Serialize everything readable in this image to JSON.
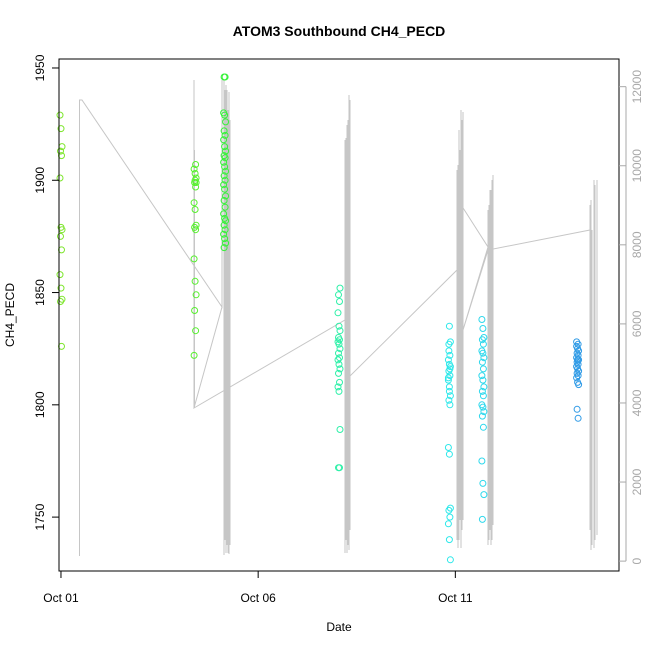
{
  "chart_data": {
    "type": "scatter",
    "title": "ATOM3 Southbound CH4_PECD",
    "xlabel": "Date",
    "ylabel": "CH4_PECD",
    "x_unit": "date (October, day of month)",
    "xlim": [
      0.95,
      15.15
    ],
    "ylim": [
      1726,
      1954
    ],
    "y2lim": [
      -250,
      12700
    ],
    "x_ticks": [
      {
        "value": 1,
        "label": "Oct 01"
      },
      {
        "value": 6,
        "label": "Oct 06"
      },
      {
        "value": 11,
        "label": "Oct 11"
      }
    ],
    "y_ticks": [
      1750,
      1800,
      1850,
      1900,
      1950
    ],
    "y2_ticks": [
      0,
      2000,
      4000,
      6000,
      8000,
      10000,
      12000
    ],
    "grid": false,
    "points_colored_by": "date (green to blue)",
    "series": [
      {
        "color": "#7ee62d",
        "x": [
          1.0,
          1.0,
          1.0,
          1.0,
          1.0,
          1.0,
          1.0,
          1.0,
          1.0,
          1.0,
          1.0,
          1.0,
          1.0,
          1.0,
          1.0
        ],
        "y": [
          1929,
          1923,
          1915,
          1913,
          1911,
          1901,
          1879,
          1878,
          1875,
          1869,
          1858,
          1852,
          1847,
          1846,
          1826
        ]
      },
      {
        "color": "#57f02e",
        "x": [
          4.4,
          4.4,
          4.4,
          4.4,
          4.4,
          4.4,
          4.4,
          4.4,
          4.4,
          4.4,
          4.4,
          4.4,
          4.4,
          4.4,
          4.4,
          4.4,
          4.4,
          4.4,
          4.4
        ],
        "y": [
          1907,
          1905,
          1903,
          1901,
          1899,
          1897,
          1890,
          1887,
          1880,
          1879,
          1878,
          1865,
          1855,
          1849,
          1842,
          1833,
          1822,
          1900,
          1899
        ]
      },
      {
        "color": "#35f238",
        "x": [
          5.15,
          5.15,
          5.15,
          5.15,
          5.15,
          5.15,
          5.15,
          5.15,
          5.15,
          5.15,
          5.15,
          5.15,
          5.15,
          5.15,
          5.15,
          5.15,
          5.15,
          5.15,
          5.15,
          5.15,
          5.15,
          5.15,
          5.15,
          5.15,
          5.15,
          5.15,
          5.15,
          5.15,
          5.15,
          5.15,
          5.15
        ],
        "y": [
          1946,
          1946,
          1930,
          1929,
          1926,
          1922,
          1920,
          1918,
          1915,
          1913,
          1911,
          1910,
          1908,
          1906,
          1904,
          1902,
          1900,
          1898,
          1896,
          1893,
          1891,
          1888,
          1885,
          1883,
          1882,
          1880,
          1878,
          1876,
          1874,
          1872,
          1870
        ]
      },
      {
        "color": "#2ef0a8",
        "x": [
          8.05,
          8.05,
          8.05,
          8.05,
          8.05,
          8.05,
          8.05,
          8.05,
          8.05,
          8.05,
          8.05,
          8.05,
          8.05,
          8.05,
          8.05,
          8.05,
          8.05,
          8.05,
          8.05,
          8.05,
          8.05,
          8.05,
          8.05
        ],
        "y": [
          1852,
          1849,
          1846,
          1841,
          1835,
          1833,
          1830,
          1829,
          1828,
          1827,
          1825,
          1823,
          1821,
          1820,
          1818,
          1816,
          1814,
          1810,
          1808,
          1806,
          1789,
          1772,
          1772
        ]
      },
      {
        "color": "#2ee8ea",
        "x": [
          10.85,
          10.85,
          10.85,
          10.85,
          10.85,
          10.85,
          10.85,
          10.85,
          10.85,
          10.85,
          10.85,
          10.85,
          10.85,
          10.85,
          10.85,
          10.85,
          10.85,
          10.85,
          10.85,
          10.85,
          10.85,
          10.85,
          10.85,
          10.85,
          10.85,
          10.85
        ],
        "y": [
          1835,
          1828,
          1827,
          1822,
          1820,
          1818,
          1817,
          1815,
          1813,
          1811,
          1806,
          1804,
          1802,
          1800,
          1781,
          1778,
          1754,
          1753,
          1750,
          1747,
          1740,
          1731,
          1824,
          1816,
          1812,
          1808
        ]
      },
      {
        "color": "#2ed8ec",
        "x": [
          11.7,
          11.7,
          11.7,
          11.7,
          11.7,
          11.7,
          11.7,
          11.7,
          11.7,
          11.7,
          11.7,
          11.7,
          11.7,
          11.7,
          11.7,
          11.7,
          11.7,
          11.7,
          11.7,
          11.7,
          11.7,
          11.7,
          11.7,
          11.7
        ],
        "y": [
          1838,
          1834,
          1830,
          1829,
          1827,
          1824,
          1823,
          1821,
          1819,
          1816,
          1813,
          1811,
          1808,
          1806,
          1804,
          1800,
          1799,
          1797,
          1795,
          1790,
          1775,
          1765,
          1760,
          1749
        ]
      },
      {
        "color": "#2e9ae6",
        "x": [
          14.1,
          14.1,
          14.1,
          14.1,
          14.1,
          14.1,
          14.1,
          14.1,
          14.1,
          14.1,
          14.1,
          14.1,
          14.1,
          14.1,
          14.1,
          14.1,
          14.1,
          14.1,
          14.1,
          14.1,
          14.1,
          14.1
        ],
        "y": [
          1827,
          1826,
          1825,
          1824,
          1823,
          1822,
          1821,
          1820,
          1820,
          1819,
          1818,
          1817,
          1816,
          1815,
          1814,
          1813,
          1812,
          1810,
          1809,
          1798,
          1794,
          1828
        ]
      }
    ]
  }
}
